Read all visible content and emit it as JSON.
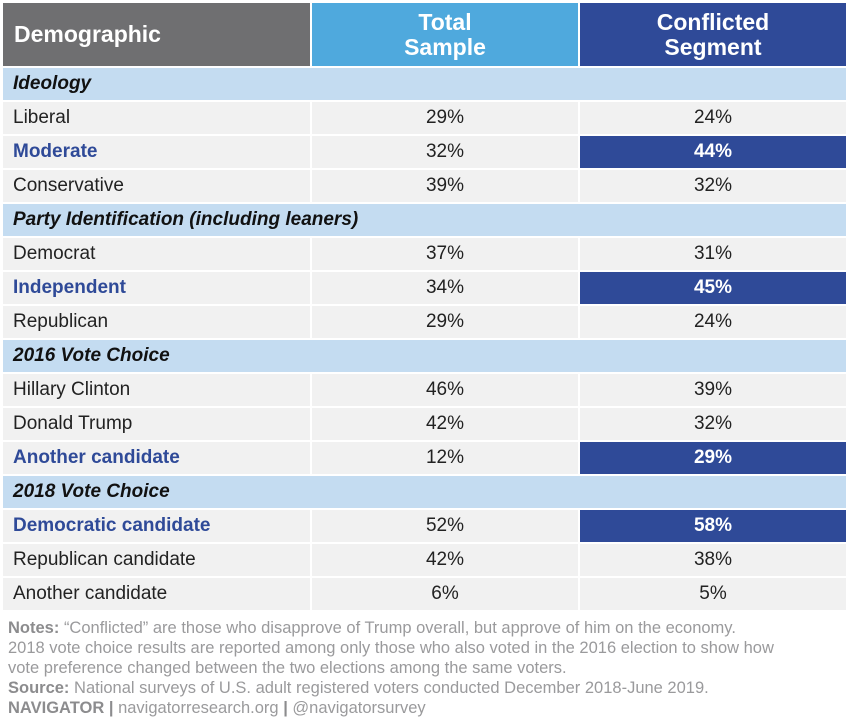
{
  "chart_data": {
    "type": "table",
    "columns": [
      "Demographic",
      "Total Sample",
      "Conflicted Segment"
    ],
    "sections": [
      {
        "title": "Ideology",
        "rows": [
          {
            "label": "Liberal",
            "total": "29%",
            "conflicted": "24%",
            "highlight": false
          },
          {
            "label": "Moderate",
            "total": "32%",
            "conflicted": "44%",
            "highlight": true
          },
          {
            "label": "Conservative",
            "total": "39%",
            "conflicted": "32%",
            "highlight": false
          }
        ]
      },
      {
        "title": "Party Identification (including leaners)",
        "rows": [
          {
            "label": "Democrat",
            "total": "37%",
            "conflicted": "31%",
            "highlight": false
          },
          {
            "label": "Independent",
            "total": "34%",
            "conflicted": "45%",
            "highlight": true
          },
          {
            "label": "Republican",
            "total": "29%",
            "conflicted": "24%",
            "highlight": false
          }
        ]
      },
      {
        "title": "2016 Vote Choice",
        "rows": [
          {
            "label": "Hillary Clinton",
            "total": "46%",
            "conflicted": "39%",
            "highlight": false
          },
          {
            "label": "Donald Trump",
            "total": "42%",
            "conflicted": "32%",
            "highlight": false
          },
          {
            "label": "Another candidate",
            "total": "12%",
            "conflicted": "29%",
            "highlight": true
          }
        ]
      },
      {
        "title": "2018 Vote Choice",
        "rows": [
          {
            "label": "Democratic candidate",
            "total": "52%",
            "conflicted": "58%",
            "highlight": true
          },
          {
            "label": "Republican candidate",
            "total": "42%",
            "conflicted": "38%",
            "highlight": false
          },
          {
            "label": "Another candidate",
            "total": "6%",
            "conflicted": "5%",
            "highlight": false
          }
        ]
      }
    ]
  },
  "header": {
    "demographic": "Demographic",
    "total_line1": "Total",
    "total_line2": "Sample",
    "conflicted_line1": "Conflicted",
    "conflicted_line2": "Segment"
  },
  "colors": {
    "header_gray": "#6f6f71",
    "header_light_blue": "#4fa9dd",
    "header_dark_blue": "#2f4a98",
    "section_band": "#c4dcf1",
    "row_background": "#f1f1f1",
    "highlight": "#2f4a98"
  },
  "footer": {
    "notes_label": "Notes:",
    "notes_line1": "“Conflicted” are those who disapprove of Trump overall, but approve of him on the economy.",
    "notes_line2": "2018 vote choice results are reported among only those who also voted in the 2016 election to show how",
    "notes_line3": "vote preference changed between the two elections among the same voters.",
    "source_label": "Source:",
    "source_text": "National surveys of U.S. adult registered voters conducted December 2018-June 2019.",
    "brand": "NAVIGATOR",
    "sep1": "|",
    "website": "navigatorresearch.org",
    "sep2": "|",
    "handle": "@navigatorsurvey"
  }
}
